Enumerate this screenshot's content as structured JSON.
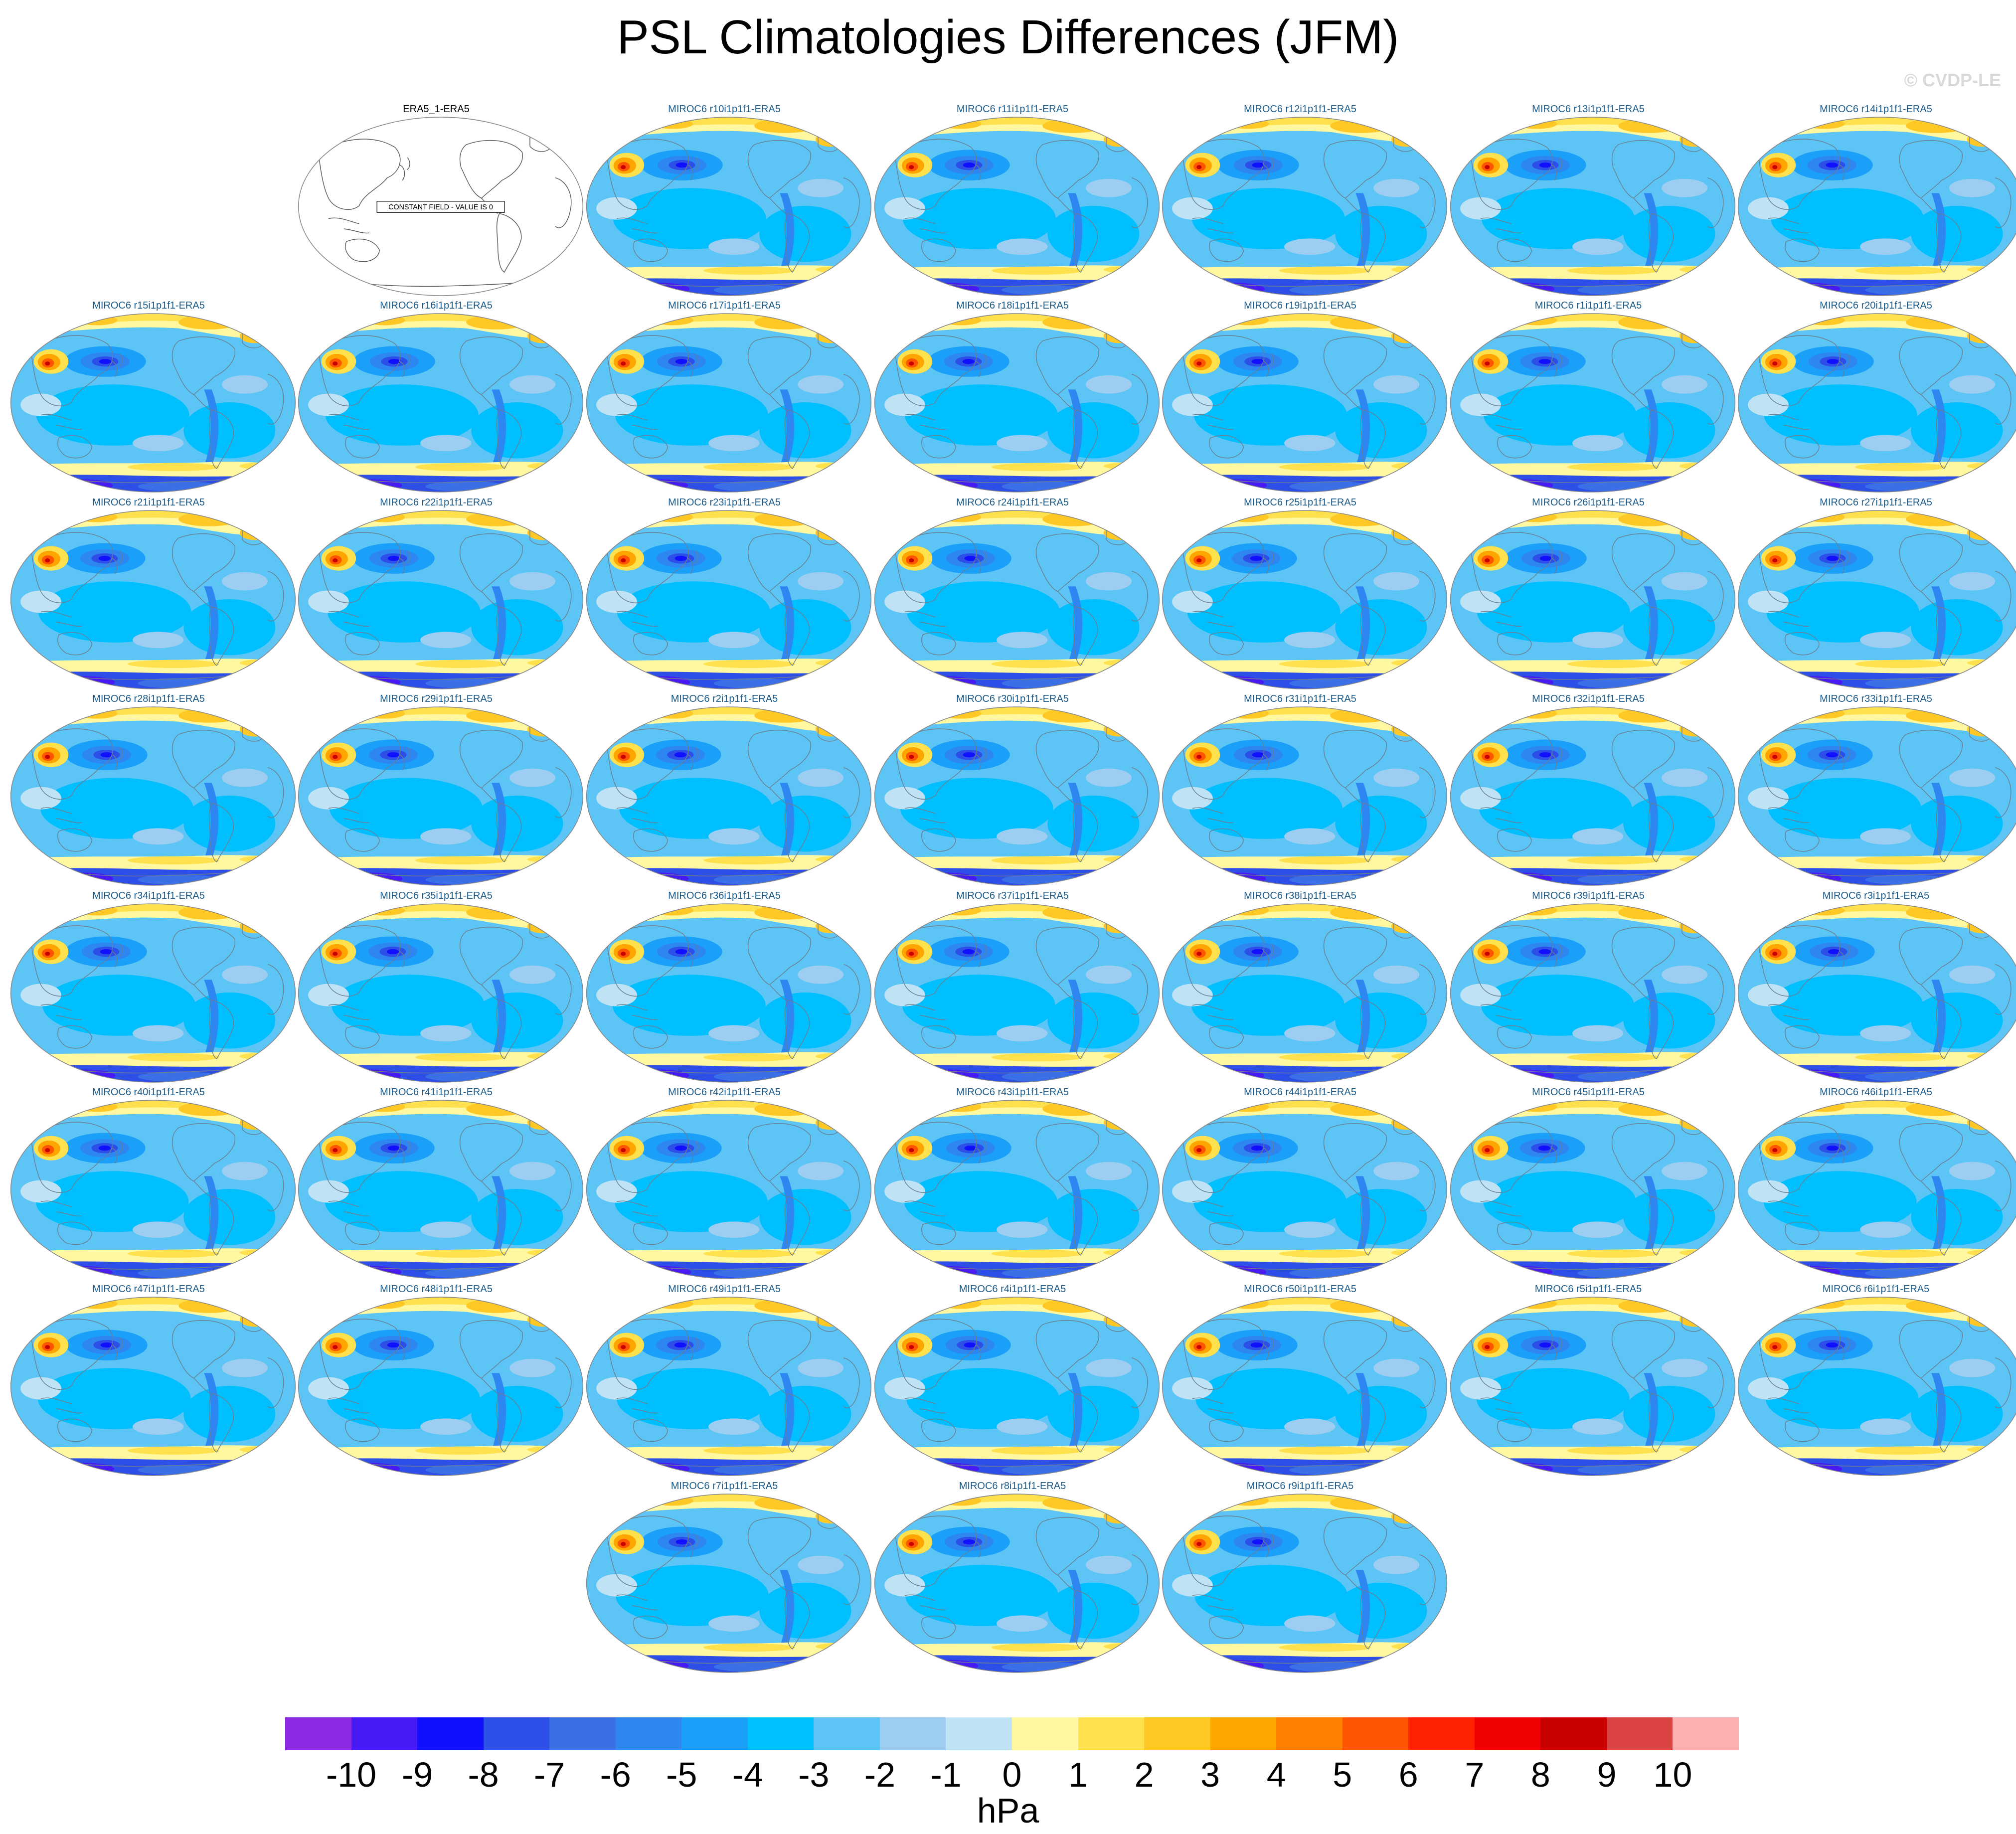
{
  "title": "PSL Climatologies Differences (JFM)",
  "copyright": "© CVDP-LE",
  "chart_data": {
    "type": "heatmap",
    "title": "PSL Climatologies Differences (JFM)",
    "projection": "robinson",
    "variable": "PSL",
    "season": "JFM",
    "units": "hPa",
    "colorbar": {
      "levels": [
        -10,
        -9,
        -8,
        -7,
        -6,
        -5,
        -4,
        -3,
        -2,
        -1,
        0,
        1,
        2,
        3,
        4,
        5,
        6,
        7,
        8,
        9,
        10
      ],
      "tick_labels": [
        "-10",
        "-9",
        "-8",
        "-7",
        "-6",
        "-5",
        "-4",
        "-3",
        "-2",
        "-1",
        "0",
        "1",
        "2",
        "3",
        "4",
        "5",
        "6",
        "7",
        "8",
        "9",
        "10"
      ],
      "colors": [
        "#8c29e3",
        "#4719f5",
        "#1010ff",
        "#2d4fe8",
        "#3b6fe8",
        "#2e86f0",
        "#1aa0f8",
        "#00bfff",
        "#5cc5f5",
        "#9dcdf0",
        "#bfe2f5",
        "#fff8a0",
        "#ffe14d",
        "#ffc825",
        "#ffa500",
        "#ff8000",
        "#ff5500",
        "#ff2200",
        "#f00000",
        "#c80000",
        "#dc4444",
        "#ffb0b0"
      ]
    },
    "reference_panel": {
      "title": "ERA5_1-ERA5",
      "note": "CONSTANT FIELD - VALUE IS 0"
    },
    "panels": [
      "MIROC6 r10i1p1f1-ERA5",
      "MIROC6 r11i1p1f1-ERA5",
      "MIROC6 r12i1p1f1-ERA5",
      "MIROC6 r13i1p1f1-ERA5",
      "MIROC6 r14i1p1f1-ERA5",
      "MIROC6 r15i1p1f1-ERA5",
      "MIROC6 r16i1p1f1-ERA5",
      "MIROC6 r17i1p1f1-ERA5",
      "MIROC6 r18i1p1f1-ERA5",
      "MIROC6 r19i1p1f1-ERA5",
      "MIROC6 r1i1p1f1-ERA5",
      "MIROC6 r20i1p1f1-ERA5",
      "MIROC6 r21i1p1f1-ERA5",
      "MIROC6 r22i1p1f1-ERA5",
      "MIROC6 r23i1p1f1-ERA5",
      "MIROC6 r24i1p1f1-ERA5",
      "MIROC6 r25i1p1f1-ERA5",
      "MIROC6 r26i1p1f1-ERA5",
      "MIROC6 r27i1p1f1-ERA5",
      "MIROC6 r28i1p1f1-ERA5",
      "MIROC6 r29i1p1f1-ERA5",
      "MIROC6 r2i1p1f1-ERA5",
      "MIROC6 r30i1p1f1-ERA5",
      "MIROC6 r31i1p1f1-ERA5",
      "MIROC6 r32i1p1f1-ERA5",
      "MIROC6 r33i1p1f1-ERA5",
      "MIROC6 r34i1p1f1-ERA5",
      "MIROC6 r35i1p1f1-ERA5",
      "MIROC6 r36i1p1f1-ERA5",
      "MIROC6 r37i1p1f1-ERA5",
      "MIROC6 r38i1p1f1-ERA5",
      "MIROC6 r39i1p1f1-ERA5",
      "MIROC6 r3i1p1f1-ERA5",
      "MIROC6 r40i1p1f1-ERA5",
      "MIROC6 r41i1p1f1-ERA5",
      "MIROC6 r42i1p1f1-ERA5",
      "MIROC6 r43i1p1f1-ERA5",
      "MIROC6 r44i1p1f1-ERA5",
      "MIROC6 r45i1p1f1-ERA5",
      "MIROC6 r46i1p1f1-ERA5",
      "MIROC6 r47i1p1f1-ERA5",
      "MIROC6 r48i1p1f1-ERA5",
      "MIROC6 r49i1p1f1-ERA5",
      "MIROC6 r4i1p1f1-ERA5",
      "MIROC6 r50i1p1f1-ERA5",
      "MIROC6 r5i1p1f1-ERA5",
      "MIROC6 r6i1p1f1-ERA5",
      "MIROC6 r7i1p1f1-ERA5",
      "MIROC6 r8i1p1f1-ERA5",
      "MIROC6 r9i1p1f1-ERA5"
    ]
  }
}
